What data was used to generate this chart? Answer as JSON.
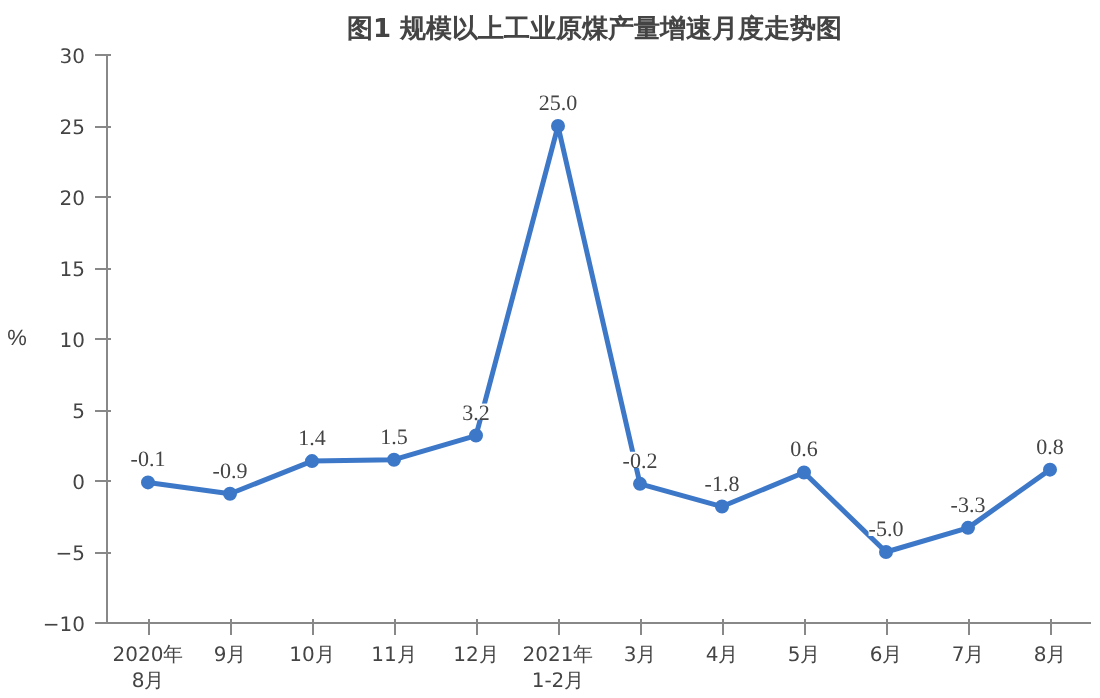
{
  "chart_data": {
    "type": "line",
    "title": "图1  规模以上工业原煤产量增速月度走势图",
    "ylabel": "%",
    "categories": [
      "2020年\n8月",
      "9月",
      "10月",
      "11月",
      "12月",
      "2021年\n1-2月",
      "3月",
      "4月",
      "5月",
      "6月",
      "7月",
      "8月"
    ],
    "series": [
      {
        "color": "#3d78c8",
        "values": [
          -0.1,
          -0.9,
          1.4,
          1.5,
          3.2,
          25.0,
          -0.2,
          -1.8,
          0.6,
          -5.0,
          -3.3,
          0.8
        ]
      }
    ],
    "value_labels": [
      "-0.1",
      "-0.9",
      "1.4",
      "1.5",
      "3.2",
      "25.0",
      "-0.2",
      "-1.8",
      "0.6",
      "-5.0",
      "-3.3",
      "0.8"
    ],
    "ylim": [
      -10,
      30
    ],
    "yticks": [
      -10,
      -5,
      0,
      5,
      10,
      15,
      20,
      25,
      30
    ],
    "grid": false,
    "marker": "circle",
    "line_style": "solid"
  }
}
